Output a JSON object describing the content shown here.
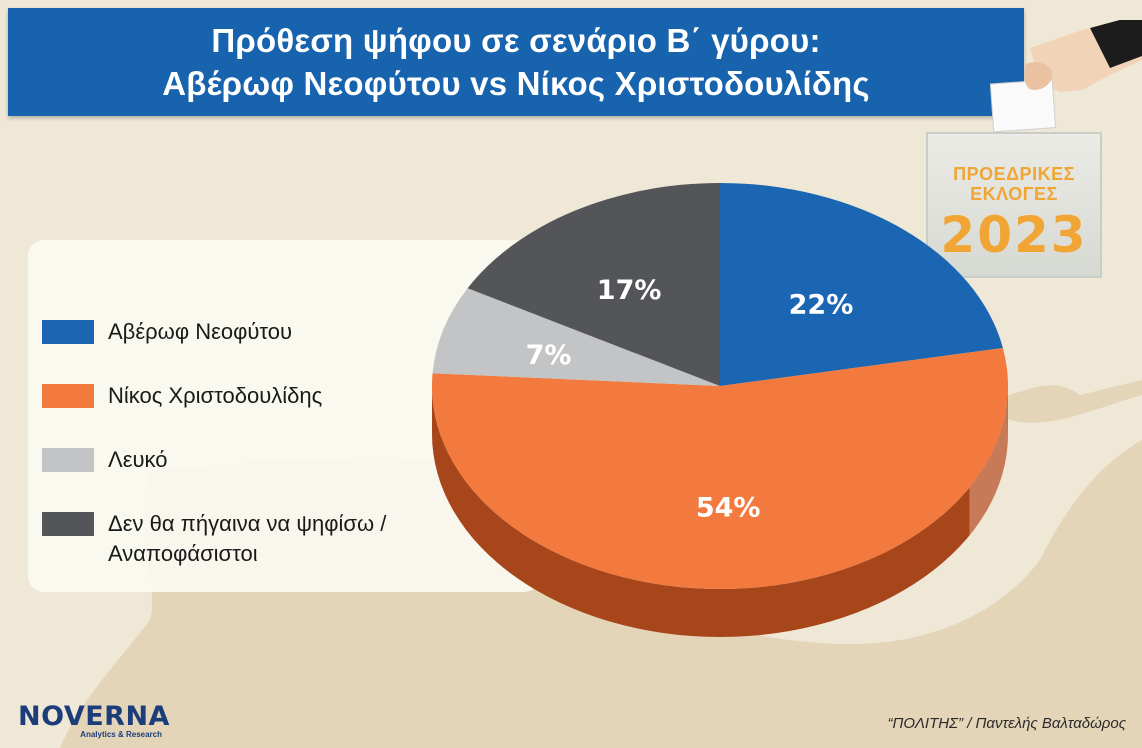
{
  "header": {
    "title_line1": "Πρόθεση ψήφου σε σενάριο Β΄ γύρου:",
    "title_line2": "Αβέρωφ Νεοφύτου vs Νίκος Χριστοδουλίδης"
  },
  "badge": {
    "line1": "ΠΡΟΕΔΡΙΚΕΣ",
    "line2": "ΕΚΛΟΓΕΣ",
    "year": "2023"
  },
  "chart_data": {
    "type": "pie",
    "title": "Πρόθεση ψήφου σε σενάριο Β΄ γύρου: Αβέρωφ Νεοφύτου vs Νίκος Χριστοδουλίδης",
    "legend_position": "left",
    "slices": [
      {
        "label": "Αβέρωφ Νεοφύτου",
        "value": 22,
        "display": "22%",
        "color": "#1b66b3",
        "side_color": "#114a86"
      },
      {
        "label": "Νίκος Χριστοδουλίδης",
        "value": 54,
        "display": "54%",
        "color": "#f27a3e",
        "side_color": "#a8461b"
      },
      {
        "label": "Λευκό",
        "value": 7,
        "display": "7%",
        "color": "#c3c4c6",
        "side_color": "#8e8f91"
      },
      {
        "label": "Δεν θα πήγαινα να ψηφίσω / Αναποφάσιστοι",
        "value": 17,
        "display": "17%",
        "color": "#545558",
        "side_color": "#333437"
      }
    ]
  },
  "legend": {
    "items": [
      {
        "label": "Αβέρωφ Νεοφύτου",
        "color": "#1b66b3"
      },
      {
        "label": "Νίκος Χριστοδουλίδης",
        "color": "#f27a3e"
      },
      {
        "label": "Λευκό",
        "color": "#c3c4c6"
      },
      {
        "label": "Δεν θα πήγαινα να ψηφίσω / Αναποφάσιστοι",
        "color": "#545558"
      }
    ]
  },
  "footer": {
    "logo_name": "NOVERNA",
    "logo_sub": "Analytics & Research",
    "source": "“ΠΟΛΙΤΗΣ” / Παντελής Βαλταδώρος"
  },
  "colors": {
    "banner": "#1763ad",
    "badge_text": "#f0a535",
    "background": "#efe8d6",
    "map": "#e2d2b4"
  }
}
